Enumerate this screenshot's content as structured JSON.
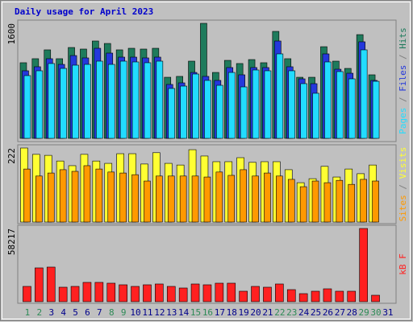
{
  "chart_data": [
    {
      "type": "bar",
      "title": "Daily usage for April 2023",
      "ylim": [
        0,
        1600
      ],
      "yticks": [
        1600
      ],
      "legend_separator": " / ",
      "series": [
        {
          "name": "Hits",
          "color": "#1e7b5c",
          "values": [
            1052,
            1108,
            1231,
            1108,
            1264,
            1242,
            1354,
            1320,
            1231,
            1253,
            1242,
            1253,
            850,
            862,
            1074,
            1600,
            917,
            1085,
            1041,
            1096,
            1052,
            1488,
            1108,
            850,
            850,
            1275,
            1074,
            973,
            1443,
            884,
            null
          ]
        },
        {
          "name": "Files",
          "color": "#2438dc",
          "values": [
            940,
            996,
            1108,
            1029,
            1152,
            1119,
            1253,
            1186,
            1130,
            1130,
            1119,
            1130,
            750,
            772,
            917,
            862,
            806,
            985,
            884,
            985,
            985,
            1354,
            996,
            828,
            761,
            1175,
            962,
            906,
            1343,
            806,
            null
          ]
        },
        {
          "name": "Pages",
          "color": "#22dcff",
          "values": [
            873,
            940,
            1041,
            973,
            1018,
            1029,
            1074,
            1029,
            1074,
            1063,
            1052,
            1074,
            694,
            727,
            895,
            806,
            738,
            917,
            716,
            951,
            940,
            1175,
            940,
            761,
            627,
            1063,
            929,
            828,
            1231,
            794,
            null
          ]
        }
      ]
    },
    {
      "type": "bar",
      "ylim": [
        0,
        222
      ],
      "yticks": [
        222
      ],
      "legend_separator": " / ",
      "series": [
        {
          "name": "Visits",
          "color": "#ffff33",
          "values": [
            222,
            203,
            200,
            183,
            169,
            203,
            183,
            176,
            205,
            205,
            174,
            208,
            176,
            171,
            217,
            198,
            181,
            181,
            193,
            179,
            181,
            181,
            157,
            118,
            130,
            167,
            135,
            159,
            145,
            171,
            null
          ]
        },
        {
          "name": "Sites",
          "color": "#ff9900",
          "values": [
            159,
            138,
            147,
            157,
            152,
            169,
            159,
            150,
            147,
            142,
            123,
            138,
            138,
            138,
            138,
            135,
            150,
            140,
            157,
            138,
            147,
            138,
            128,
            106,
            123,
            118,
            125,
            113,
            128,
            123,
            null
          ]
        }
      ]
    },
    {
      "type": "bar",
      "ylim": [
        0,
        58217
      ],
      "yticks": [
        58217
      ],
      "categories": [
        "1",
        "2",
        "3",
        "4",
        "5",
        "6",
        "7",
        "8",
        "9",
        "10",
        "11",
        "12",
        "13",
        "14",
        "15",
        "16",
        "17",
        "18",
        "19",
        "20",
        "21",
        "22",
        "23",
        "24",
        "25",
        "26",
        "27",
        "28",
        "29",
        "30",
        "31"
      ],
      "category_colors": [
        "#2e8b57",
        "#2e8b57",
        "#00008b",
        "#00008b",
        "#00008b",
        "#00008b",
        "#00008b",
        "#2e8b57",
        "#2e8b57",
        "#00008b",
        "#00008b",
        "#00008b",
        "#00008b",
        "#00008b",
        "#2e8b57",
        "#2e8b57",
        "#00008b",
        "#00008b",
        "#00008b",
        "#00008b",
        "#00008b",
        "#2e8b57",
        "#2e8b57",
        "#00008b",
        "#00008b",
        "#00008b",
        "#00008b",
        "#00008b",
        "#2e8b57",
        "#2e8b57",
        "#00008b"
      ],
      "series": [
        {
          "name": "kB F",
          "color": "#ff2020",
          "values": [
            12155,
            26870,
            27509,
            11515,
            12155,
            15354,
            15354,
            14714,
            13435,
            12155,
            13435,
            14075,
            12155,
            10876,
            14075,
            13435,
            14714,
            14714,
            8317,
            12155,
            11515,
            14075,
            9596,
            6398,
            8317,
            10236,
            8317,
            8317,
            58217,
            5118,
            null
          ]
        }
      ]
    }
  ]
}
